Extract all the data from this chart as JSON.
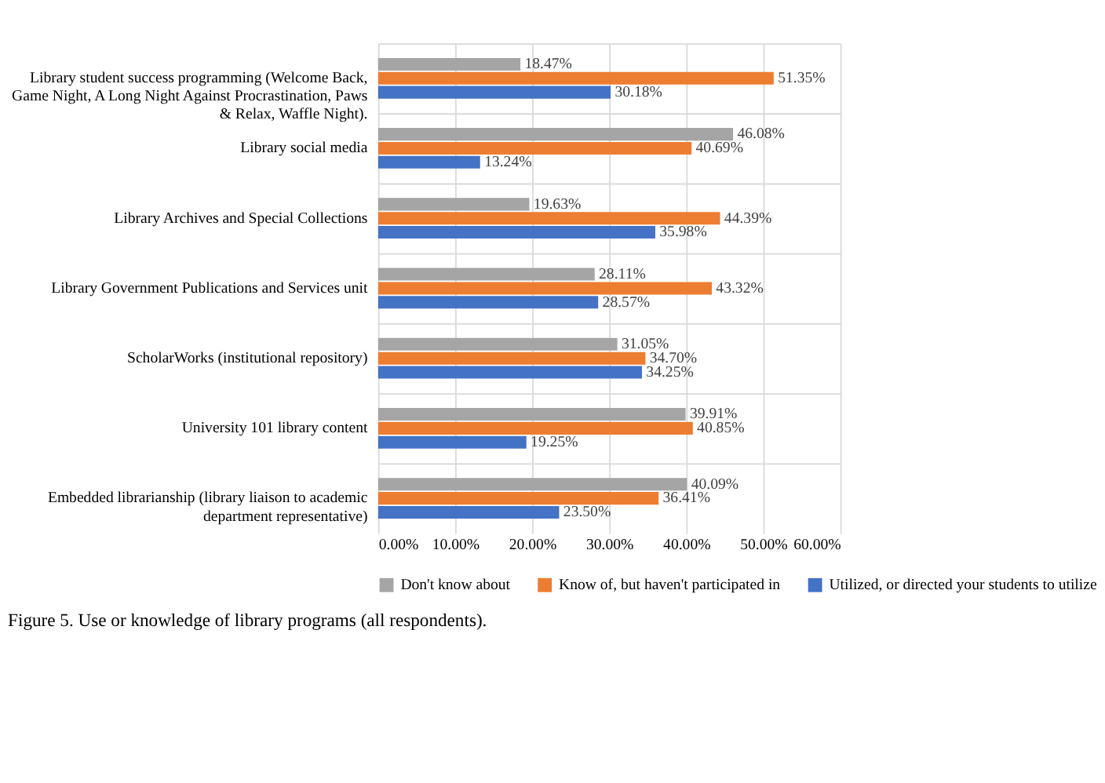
{
  "chart_data": {
    "type": "bar",
    "orientation": "horizontal",
    "categories": [
      "Library student success programming (Welcome Back, Game Night, A Long Night Against Procrastination, Paws & Relax, Waffle Night).",
      "Library social media",
      "Library Archives and Special Collections",
      "Library Government Publications and Services unit",
      "ScholarWorks (institutional repository)",
      "University 101 library content",
      "Embedded librarianship (library liaison to academic department representative)"
    ],
    "series": [
      {
        "name": "Don't know about",
        "color": "#a5a5a5",
        "values": [
          18.47,
          46.08,
          19.63,
          28.11,
          31.05,
          39.91,
          40.09
        ],
        "value_labels": [
          "18.47%",
          "46.08%",
          "19.63%",
          "28.11%",
          "31.05%",
          "39.91%",
          "40.09%"
        ]
      },
      {
        "name": "Know of, but haven't participated in",
        "color": "#ed7d31",
        "values": [
          51.35,
          40.69,
          44.39,
          43.32,
          34.7,
          40.85,
          36.41
        ],
        "value_labels": [
          "51.35%",
          "40.69%",
          "44.39%",
          "43.32%",
          "34.70%",
          "40.85%",
          "36.41%"
        ]
      },
      {
        "name": "Utilized, or directed your students to utilize",
        "color": "#4472c4",
        "values": [
          30.18,
          13.24,
          35.98,
          28.57,
          34.25,
          19.25,
          23.5
        ],
        "value_labels": [
          "30.18%",
          "13.24%",
          "35.98%",
          "28.57%",
          "34.25%",
          "19.25%",
          "23.50%"
        ]
      }
    ],
    "xlim": [
      0,
      60
    ],
    "xticks": [
      {
        "value": 0,
        "label": "0.00%"
      },
      {
        "value": 10,
        "label": "10.00%"
      },
      {
        "value": 20,
        "label": "20.00%"
      },
      {
        "value": 30,
        "label": "30.00%"
      },
      {
        "value": 40,
        "label": "40.00%"
      },
      {
        "value": 50,
        "label": "50.00%"
      },
      {
        "value": 60,
        "label": "60.00%"
      }
    ],
    "grid": true,
    "legend": "bottom",
    "annotations": [
      "Figure 5. Use or knowledge of library programs (all respondents)."
    ]
  }
}
